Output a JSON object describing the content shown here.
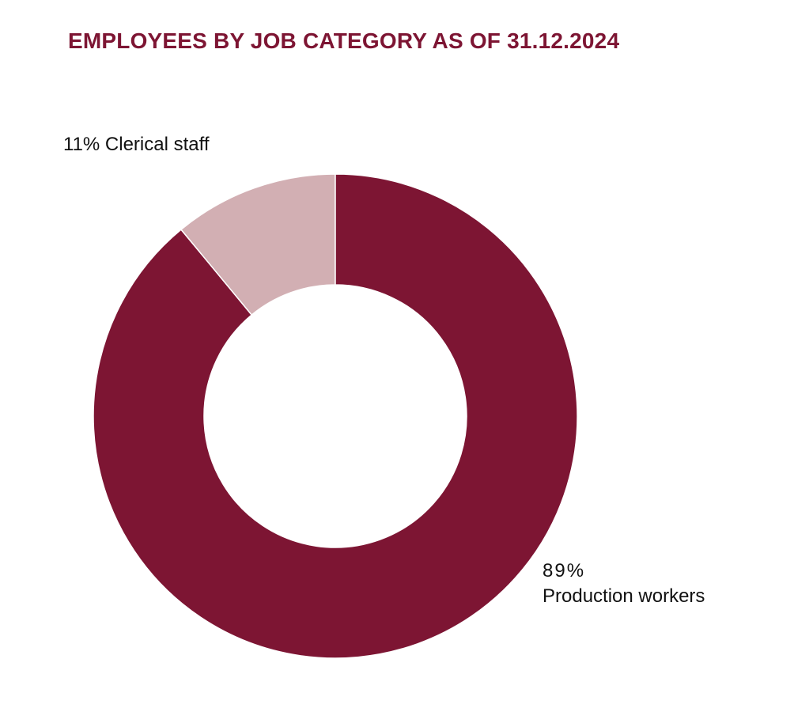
{
  "chart_data": {
    "type": "pie",
    "subtype": "donut",
    "title": "EMPLOYEES BY JOB CATEGORY AS OF 31.12.2024",
    "slices": [
      {
        "name": "Clerical staff",
        "value": 11,
        "pct_label": "11%",
        "label": "11% Clerical staff",
        "color": "#d2afb3"
      },
      {
        "name": "Production workers",
        "value": 89,
        "pct_label": "89%",
        "label": "Production workers",
        "color": "#7d1533"
      }
    ],
    "start": "12 o'clock",
    "direction": "counter-clockwise from top for first slice",
    "legend": "none",
    "unit": "%"
  }
}
